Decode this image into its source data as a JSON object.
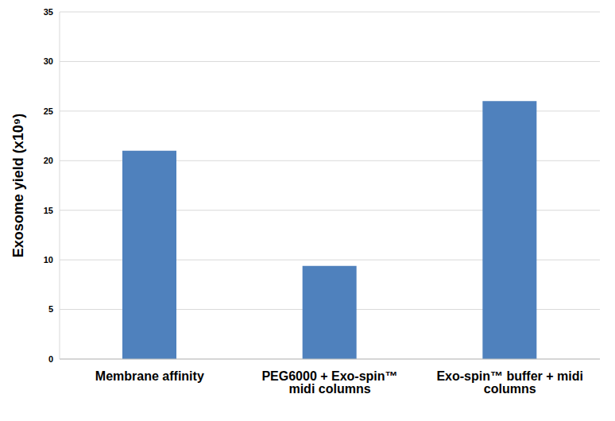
{
  "chart_data": {
    "type": "bar",
    "categories": [
      "Membrane affinity",
      "PEG6000 + Exo-spin™ midi columns",
      "Exo-spin™ buffer + midi columns"
    ],
    "values": [
      21,
      9.4,
      26
    ],
    "color": "#4f81bd",
    "ylabel": "Exosome yield (x10⁹)",
    "ylim": [
      0,
      35
    ],
    "yticks": [
      0,
      5,
      10,
      15,
      20,
      25,
      30,
      35
    ],
    "grid": true
  }
}
